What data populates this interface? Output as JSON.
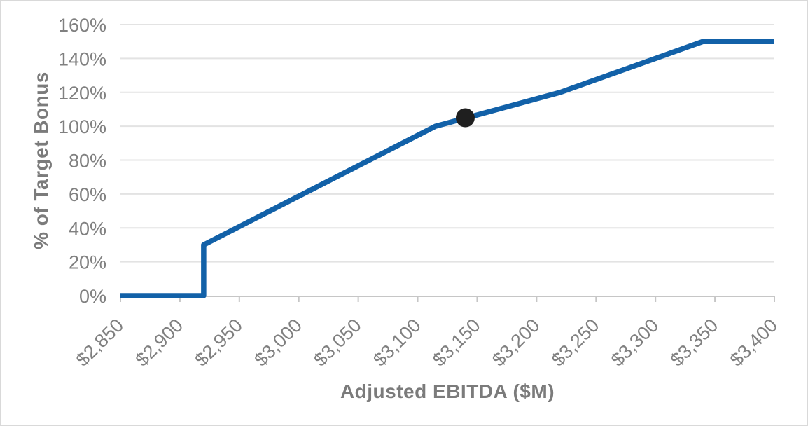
{
  "chart_data": {
    "type": "line",
    "title": "",
    "xlabel": "Adjusted EBITDA ($M)",
    "ylabel": "% of Target Bonus",
    "xlim": [
      2850,
      3400
    ],
    "ylim": [
      0,
      160
    ],
    "grid": "horizontal-major",
    "legend": "none",
    "x_ticks": [
      2850,
      2900,
      2950,
      3000,
      3050,
      3100,
      3150,
      3200,
      3250,
      3300,
      3350,
      3400
    ],
    "x_tick_labels": [
      "$2,850",
      "$2,900",
      "$2,950",
      "$3,000",
      "$3,050",
      "$3,100",
      "$3,150",
      "$3,200",
      "$3,250",
      "$3,300",
      "$3,350",
      "$3,400"
    ],
    "y_ticks": [
      0,
      20,
      40,
      60,
      80,
      100,
      120,
      140,
      160
    ],
    "y_tick_labels": [
      "0%",
      "20%",
      "40%",
      "60%",
      "80%",
      "100%",
      "120%",
      "140%",
      "160%"
    ],
    "series": [
      {
        "name": "bonus-payout-curve",
        "color": "#1261a8",
        "points": [
          [
            2850,
            0
          ],
          [
            2920,
            0
          ],
          [
            2920,
            30
          ],
          [
            3115,
            100
          ],
          [
            3220,
            120
          ],
          [
            3340,
            150
          ],
          [
            3400,
            150
          ]
        ]
      }
    ],
    "highlight_point": {
      "x": 3140,
      "y": 105,
      "color": "#1f1f1f",
      "radius": 13.5
    },
    "colors": {
      "line": "#1261a8",
      "marker": "#1f1f1f",
      "gridline": "#e3e3e3",
      "axis": "#c6c6c6",
      "tick_label": "#808080",
      "axis_title": "#7b7b7b",
      "frame_border": "#d9d9d9"
    }
  }
}
